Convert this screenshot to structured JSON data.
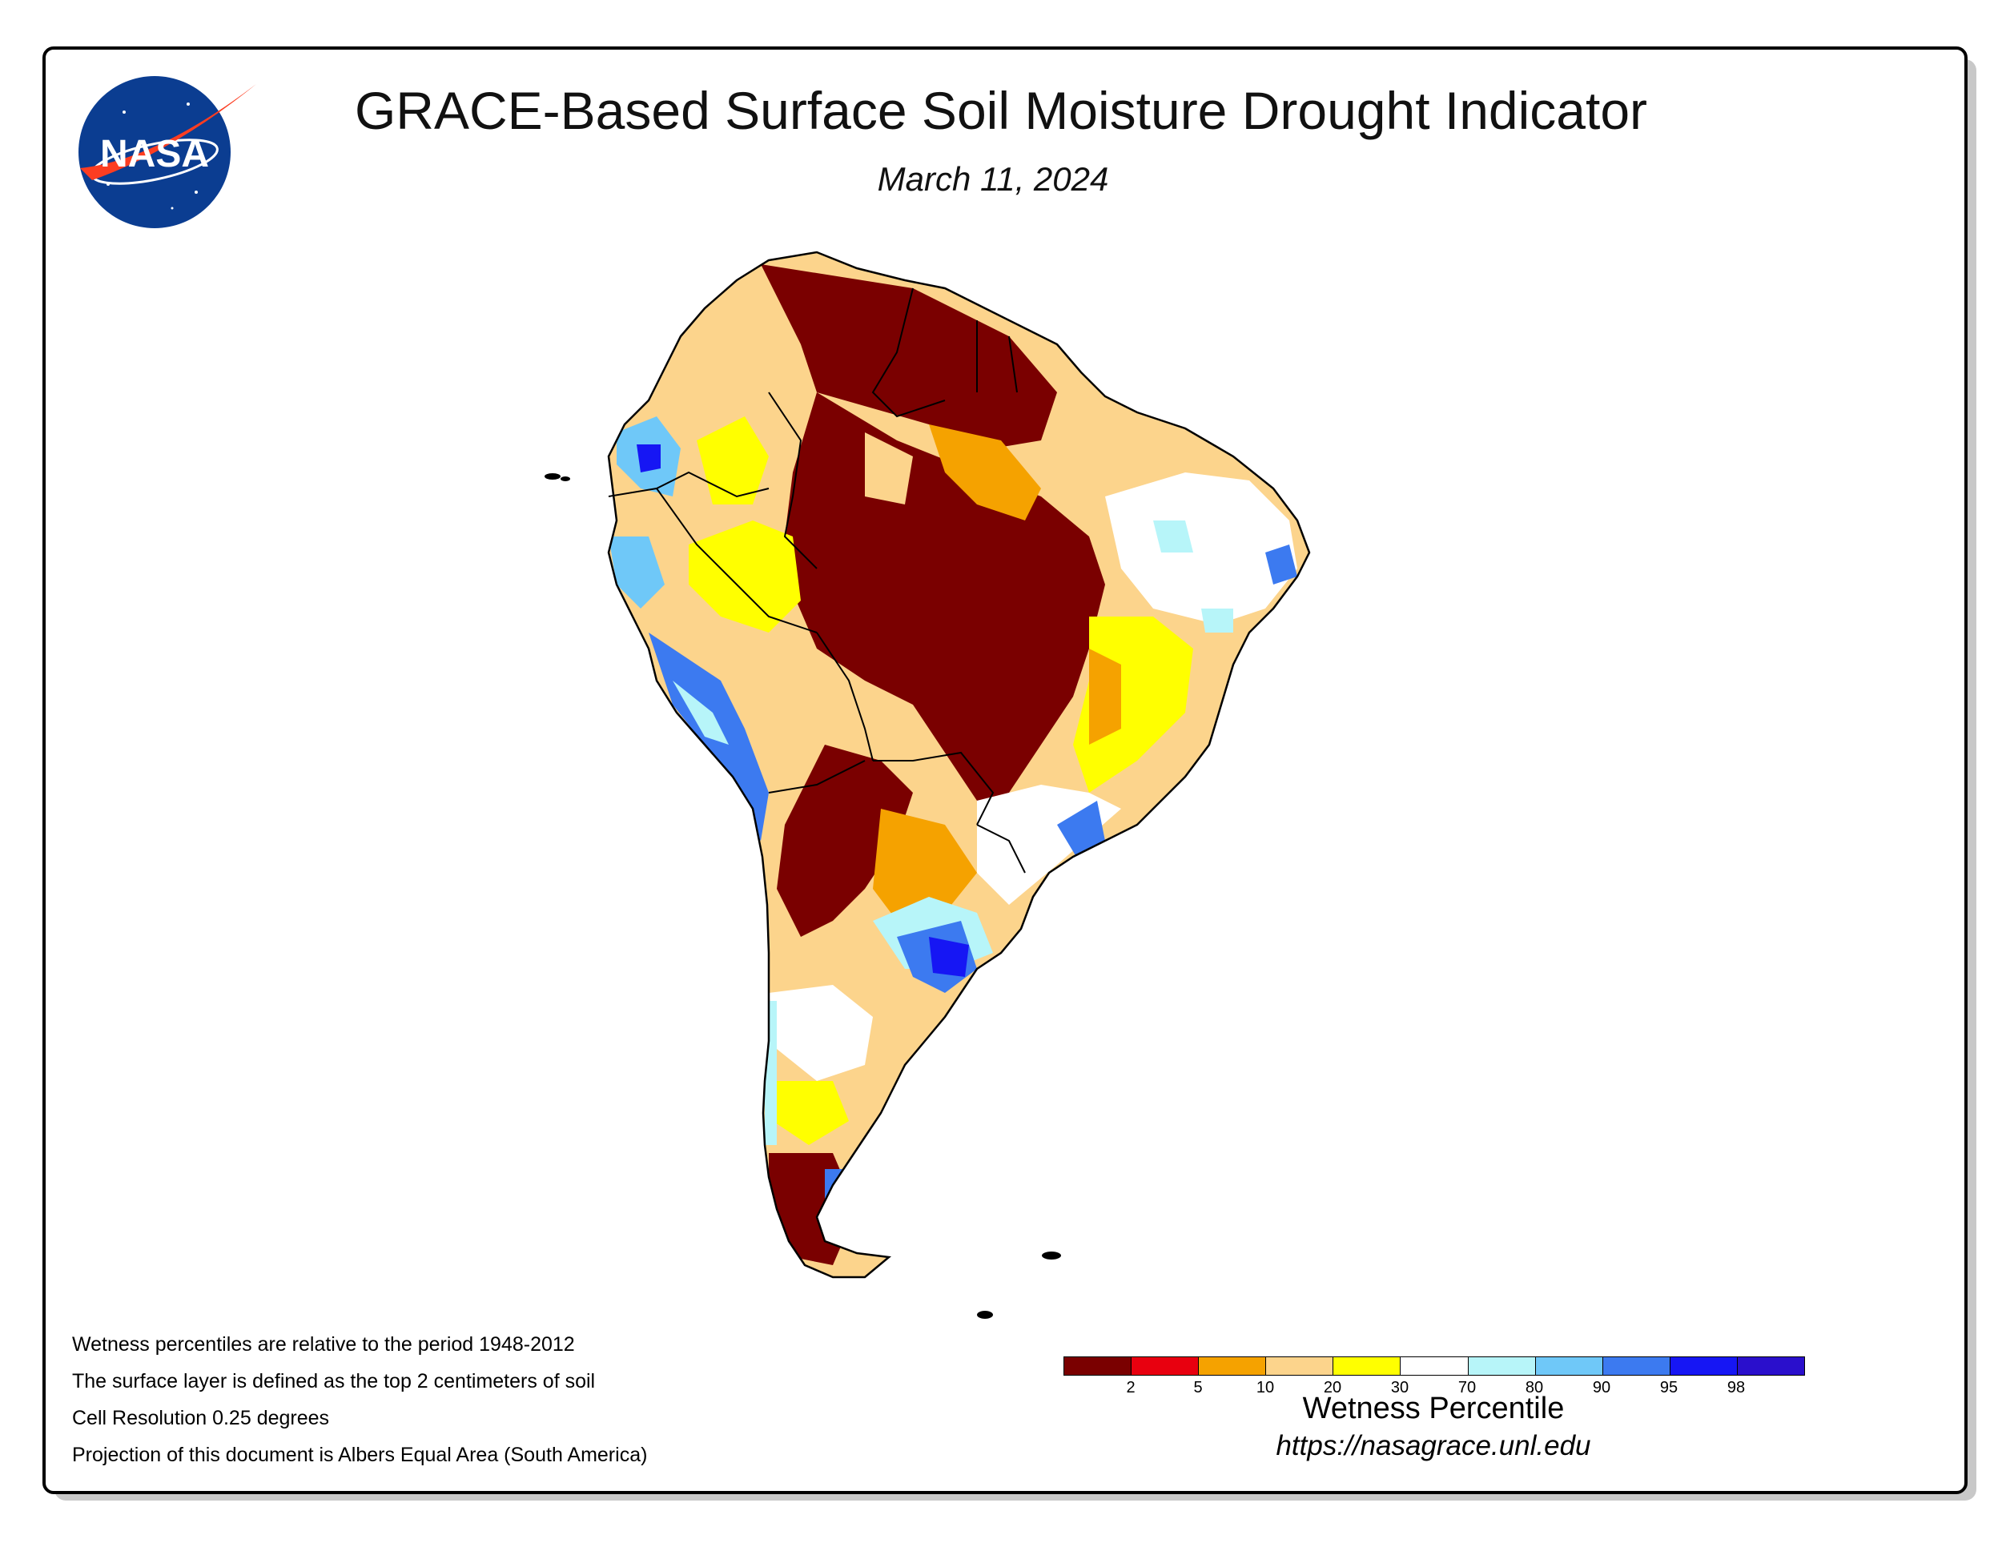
{
  "header": {
    "title": "GRACE-Based Surface Soil Moisture Drought Indicator",
    "date": "March 11, 2024"
  },
  "logo": {
    "text": "NASA",
    "colors": {
      "globe": "#0b3d91",
      "swoosh": "#fc3d21",
      "text": "#ffffff"
    }
  },
  "notes": [
    "Wetness percentiles are relative to the period 1948-2012",
    "The surface layer is defined as the top 2 centimeters of soil",
    "Cell Resolution 0.25 degrees",
    "Projection of this document is Albers Equal Area (South America)"
  ],
  "legend": {
    "title": "Wetness Percentile",
    "ticks": [
      "2",
      "5",
      "10",
      "20",
      "30",
      "70",
      "80",
      "90",
      "95",
      "98"
    ],
    "colors": [
      "#7a0000",
      "#e8000f",
      "#f5a200",
      "#fcd48c",
      "#ffff00",
      "#ffffff",
      "#b7f5f9",
      "#6fc8f8",
      "#3c7af0",
      "#1616f4",
      "#2a0fcc"
    ]
  },
  "footer": {
    "url": "https://nasagrace.unl.edu"
  },
  "map": {
    "region": "South America",
    "colors": {
      "outline": "#000000",
      "severe_dry": "#7a0000",
      "dry": "#e8000f",
      "moderate_dry": "#f5a200",
      "light_dry": "#fcd48c",
      "abnormal_dry": "#ffff00",
      "normal": "#ffffff",
      "light_wet": "#b7f5f9",
      "wet": "#6fc8f8",
      "very_wet": "#3c7af0",
      "extreme_wet": "#1616f4"
    }
  }
}
